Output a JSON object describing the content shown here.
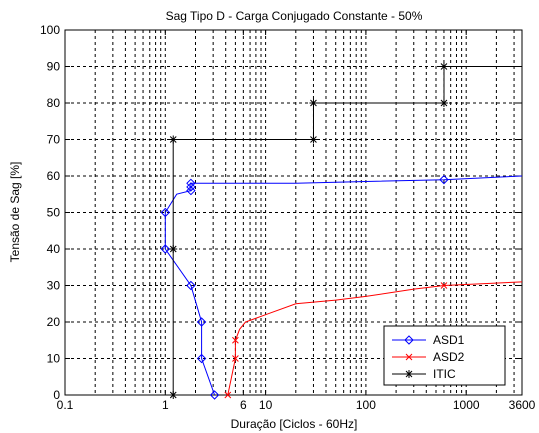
{
  "chart_data": {
    "type": "line",
    "title": "Sag Tipo D - Carga Conjugado Constante - 50%",
    "xlabel": "Duração [Ciclos - 60Hz]",
    "ylabel": "Tensão de Sag [%]",
    "x_scale": "log",
    "xlim": [
      0.1,
      3600
    ],
    "ylim": [
      0,
      100
    ],
    "x_ticks": [
      0.1,
      1,
      6,
      10,
      100,
      1000,
      3600
    ],
    "x_tick_labels": [
      "0.1",
      "1",
      "6",
      "10",
      "100",
      "1000",
      "3600"
    ],
    "y_ticks": [
      0,
      10,
      20,
      30,
      40,
      50,
      60,
      70,
      80,
      90,
      100
    ],
    "y_tick_labels": [
      "0",
      "10",
      "20",
      "30",
      "40",
      "50",
      "60",
      "70",
      "80",
      "90",
      "100"
    ],
    "grid": "major-and-minor-x, major-y",
    "legend_position": "bottom-right",
    "series": [
      {
        "name": "ASD1",
        "color": "#0000ff",
        "marker": "diamond",
        "points": [
          [
            3.1,
            0
          ],
          [
            2.3,
            10
          ],
          [
            2.3,
            20
          ],
          [
            1.8,
            30
          ],
          [
            1,
            40
          ],
          [
            1,
            50
          ],
          [
            1.3,
            55
          ],
          [
            1.8,
            56
          ],
          [
            1.8,
            57
          ],
          [
            1.8,
            58
          ],
          [
            5.5,
            58
          ],
          [
            20,
            58
          ],
          [
            100,
            58.5
          ],
          [
            600,
            59
          ],
          [
            3600,
            60
          ]
        ],
        "marker_x": [
          3.1,
          2.3,
          2.3,
          1.8,
          1,
          1,
          1.8,
          1.8,
          1.8,
          1.8,
          600
        ]
      },
      {
        "name": "ASD2",
        "color": "#ff0000",
        "marker": "x",
        "points": [
          [
            4.2,
            0
          ],
          [
            5.0,
            10
          ],
          [
            5.0,
            15
          ],
          [
            5.5,
            18
          ],
          [
            6.3,
            20
          ],
          [
            10,
            22
          ],
          [
            20,
            25
          ],
          [
            50,
            26
          ],
          [
            100,
            27
          ],
          [
            300,
            29
          ],
          [
            600,
            30
          ],
          [
            3600,
            31
          ]
        ],
        "marker_x": [
          4.2,
          5.0,
          5.0,
          600
        ]
      },
      {
        "name": "ITIC",
        "color": "#000000",
        "marker": "star",
        "points": [
          [
            1.2,
            0
          ],
          [
            1.2,
            40
          ],
          [
            1.2,
            70
          ],
          [
            30,
            70
          ],
          [
            30,
            80
          ],
          [
            600,
            80
          ],
          [
            600,
            90
          ],
          [
            3600,
            90
          ]
        ],
        "marker_x": [
          1.2,
          1.2,
          30,
          30,
          600,
          600
        ]
      }
    ]
  }
}
